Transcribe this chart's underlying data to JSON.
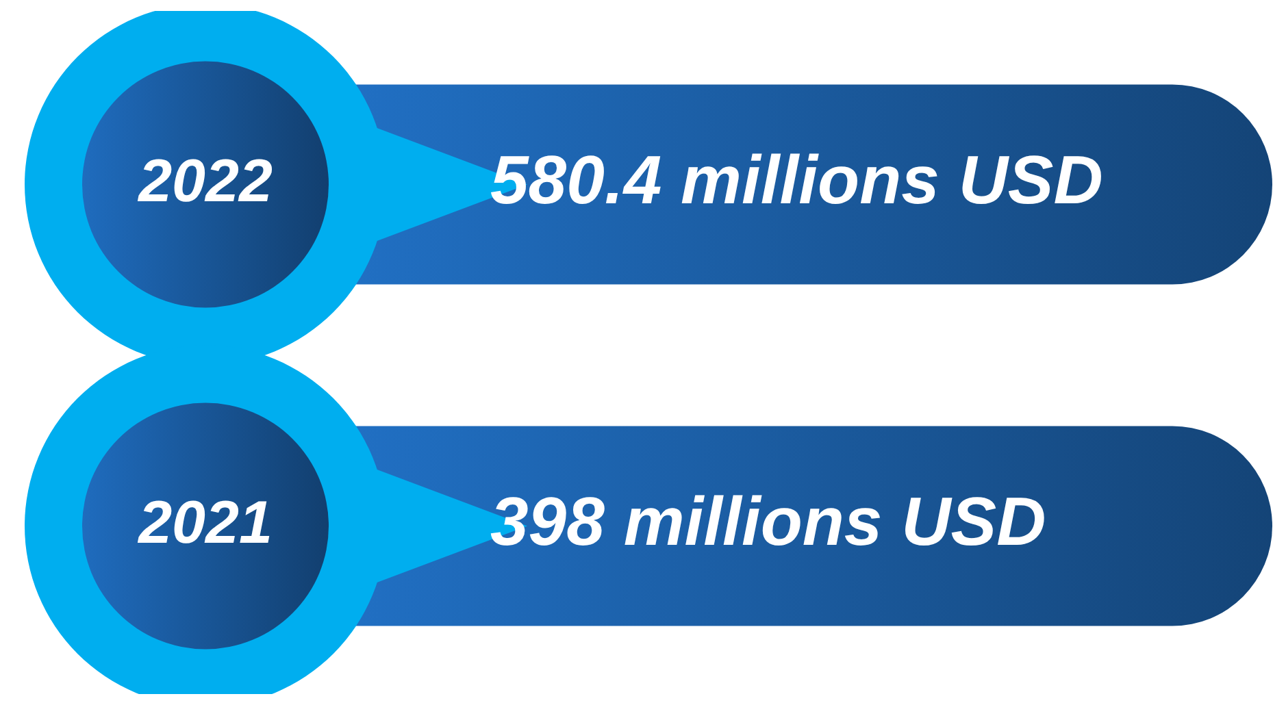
{
  "chart_data": {
    "type": "other",
    "categories": [
      "2022",
      "2021"
    ],
    "values": [
      580.4,
      398
    ],
    "value_labels": [
      "580.4 millions USD",
      "398 millions USD"
    ],
    "colors": [
      "#1a5a9e",
      "#1a5a9e"
    ]
  }
}
